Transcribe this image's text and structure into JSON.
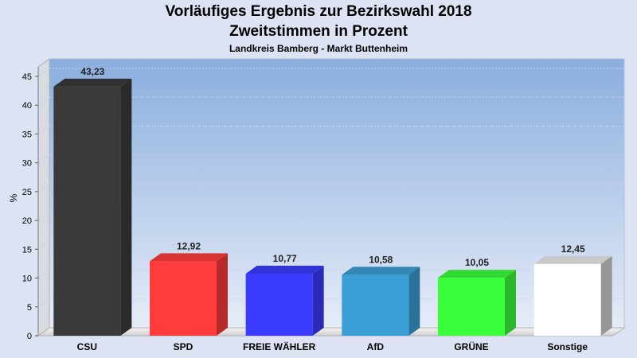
{
  "chart_data": {
    "type": "bar",
    "title": "Vorläufiges Ergebnis zur Bezirkswahl 2018",
    "subtitle": "Zweitstimmen in Prozent",
    "caption": "Landkreis Bamberg - Markt Buttenheim",
    "ylabel": "%",
    "xlabel": "",
    "ylim": [
      0,
      45
    ],
    "yticks": [
      0,
      5,
      10,
      15,
      20,
      25,
      30,
      35,
      40,
      45
    ],
    "grid": true,
    "categories": [
      "CSU",
      "SPD",
      "FREIE WÄHLER",
      "AfD",
      "GRÜNE",
      "Sonstige"
    ],
    "values": [
      43.23,
      12.92,
      10.77,
      10.58,
      10.05,
      12.45
    ],
    "value_labels": [
      "43,23",
      "12,92",
      "10,77",
      "10,58",
      "10,05",
      "12,45"
    ],
    "colors": [
      "#3a3a3a",
      "#ff3b3b",
      "#3b3bff",
      "#3b9fd6",
      "#3bff3b",
      "#ffffff"
    ]
  }
}
